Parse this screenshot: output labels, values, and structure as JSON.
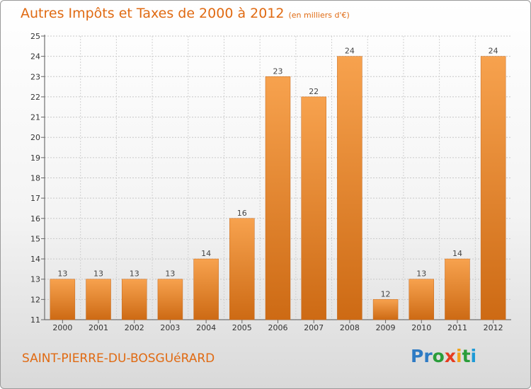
{
  "chart_data": {
    "type": "bar",
    "title": "Autres Impôts et Taxes de 2000 à 2012",
    "subtitle": "(en milliers d'€)",
    "categories": [
      "2000",
      "2001",
      "2002",
      "2003",
      "2004",
      "2005",
      "2006",
      "2007",
      "2008",
      "2009",
      "2010",
      "2011",
      "2012"
    ],
    "values": [
      13,
      13,
      13,
      13,
      14,
      16,
      23,
      22,
      24,
      12,
      13,
      14,
      24
    ],
    "ylim": [
      11,
      25
    ],
    "yticks": [
      11,
      12,
      13,
      14,
      15,
      16,
      17,
      18,
      19,
      20,
      21,
      22,
      23,
      24,
      25
    ],
    "grid": true,
    "bar_color": "#f0903a"
  },
  "footer": {
    "town": "SAINT-PIERRE-DU-BOSGUéRARD",
    "logo": [
      "P",
      "r",
      "o",
      "x",
      "i",
      "t",
      "i"
    ]
  }
}
